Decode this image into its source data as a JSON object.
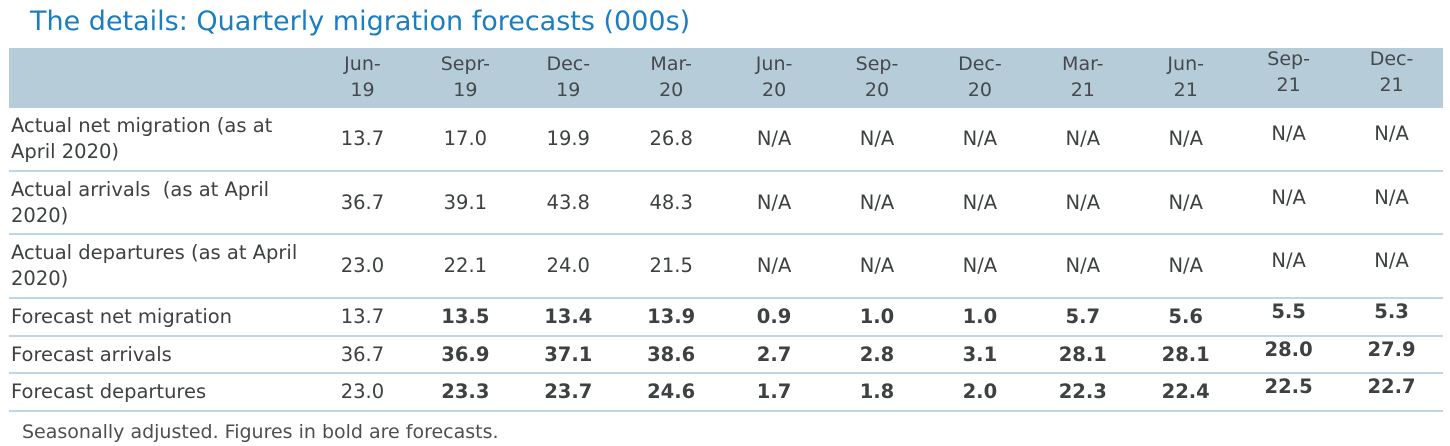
{
  "chart_data": {
    "type": "table",
    "title": "The details: Quarterly migration forecasts (000s)",
    "categories": [
      "Jun-19",
      "Sepr-19",
      "Dec-19",
      "Mar-20",
      "Jun-20",
      "Sep-20",
      "Dec-20",
      "Mar-21",
      "Jun-21",
      "Sep-21",
      "Dec-21"
    ],
    "series": [
      {
        "name": "Actual net migration (as at April 2020)",
        "values": [
          13.7,
          17.0,
          19.9,
          26.8,
          null,
          null,
          null,
          null,
          null,
          null,
          null
        ],
        "display": [
          "13.7",
          "17.0",
          "19.9",
          "26.8",
          "N/A",
          "N/A",
          "N/A",
          "N/A",
          "N/A",
          "N/A",
          "N/A"
        ],
        "bold_from_column": null
      },
      {
        "name": "Actual arrivals  (as at April 2020)",
        "values": [
          36.7,
          39.1,
          43.8,
          48.3,
          null,
          null,
          null,
          null,
          null,
          null,
          null
        ],
        "display": [
          "36.7",
          "39.1",
          "43.8",
          "48.3",
          "N/A",
          "N/A",
          "N/A",
          "N/A",
          "N/A",
          "N/A",
          "N/A"
        ],
        "bold_from_column": null
      },
      {
        "name": "Actual departures (as at April 2020)",
        "values": [
          23.0,
          22.1,
          24.0,
          21.5,
          null,
          null,
          null,
          null,
          null,
          null,
          null
        ],
        "display": [
          "23.0",
          "22.1",
          "24.0",
          "21.5",
          "N/A",
          "N/A",
          "N/A",
          "N/A",
          "N/A",
          "N/A",
          "N/A"
        ],
        "bold_from_column": null
      },
      {
        "name": "Forecast net migration",
        "values": [
          13.7,
          13.5,
          13.4,
          13.9,
          0.9,
          1.0,
          1.0,
          5.7,
          5.6,
          5.5,
          5.3
        ],
        "display": [
          "13.7",
          "13.5",
          "13.4",
          "13.9",
          "0.9",
          "1.0",
          "1.0",
          "5.7",
          "5.6",
          "5.5",
          "5.3"
        ],
        "bold_from_column": 1
      },
      {
        "name": "Forecast arrivals",
        "values": [
          36.7,
          36.9,
          37.1,
          38.6,
          2.7,
          2.8,
          3.1,
          28.1,
          28.1,
          28.0,
          27.9
        ],
        "display": [
          "36.7",
          "36.9",
          "37.1",
          "38.6",
          "2.7",
          "2.8",
          "3.1",
          "28.1",
          "28.1",
          "28.0",
          "27.9"
        ],
        "bold_from_column": 1
      },
      {
        "name": "Forecast departures",
        "values": [
          23.0,
          23.3,
          23.7,
          24.6,
          1.7,
          1.8,
          2.0,
          22.3,
          22.4,
          22.5,
          22.7
        ],
        "display": [
          "23.0",
          "23.3",
          "23.7",
          "24.6",
          "1.7",
          "1.8",
          "2.0",
          "22.3",
          "22.4",
          "22.5",
          "22.7"
        ],
        "bold_from_column": 1
      }
    ],
    "footnote": "Seasonally adjusted. Figures in bold are forecasts.",
    "layout": {
      "header_background": "#b6ccd9",
      "title_color": "#1b7ec2",
      "separator_color": "#bfd7e2",
      "body_text_color": "#3e4142",
      "raised_columns_from_index": 9
    }
  }
}
